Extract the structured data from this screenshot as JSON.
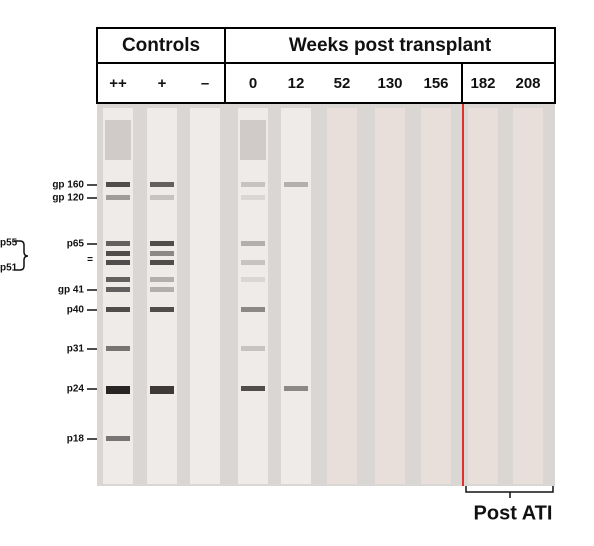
{
  "header": {
    "groups": [
      "Controls",
      "Weeks post transplant"
    ],
    "lanes": [
      "++",
      "+",
      "–",
      "0",
      "12",
      "52",
      "130",
      "156",
      "182",
      "208"
    ]
  },
  "bands": [
    "gp 160",
    "gp 120",
    "p65",
    "=",
    "gp 41",
    "p40",
    "p31",
    "p24",
    "p18"
  ],
  "bracket": [
    "p55",
    "p51"
  ],
  "annotation": "Post ATI"
}
